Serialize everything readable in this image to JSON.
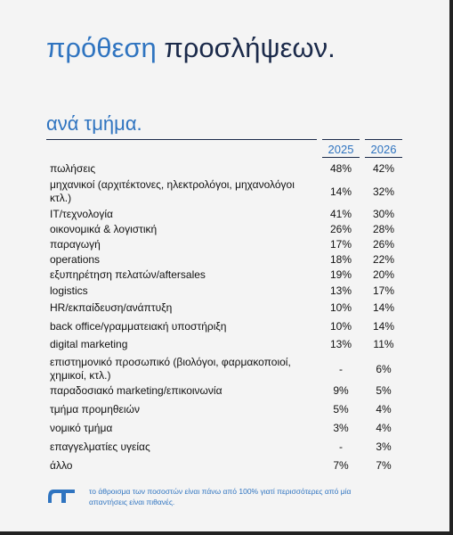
{
  "header": {
    "title_accent": "πρόθεση",
    "title_rest": "προσλήψεων.",
    "subtitle": "ανά τμήμα."
  },
  "table": {
    "columns": [
      "2025",
      "2026"
    ],
    "rows": [
      [
        "πωλήσεις",
        "48%",
        "42%"
      ],
      [
        "μηχανικοί (αρχιτέκτονες, ηλεκτρολόγοι, μηχανολόγοι κτλ.)",
        "14%",
        "32%"
      ],
      [
        "IT/τεχνολογία",
        "41%",
        "30%"
      ],
      [
        "οικονομικά & λογιστική",
        "26%",
        "28%"
      ],
      [
        "παραγωγή",
        "17%",
        "26%"
      ],
      [
        "operations",
        "18%",
        "22%"
      ],
      [
        "εξυπηρέτηση πελατών/aftersales",
        "19%",
        "20%"
      ],
      [
        "logistics",
        "13%",
        "17%"
      ],
      [
        "HR/εκπαίδευση/ανάπτυξη",
        "10%",
        "14%"
      ],
      [
        "back office/γραμματειακή υποστήριξη",
        "10%",
        "14%"
      ],
      [
        "digital marketing",
        "13%",
        "11%"
      ],
      [
        "επιστημονικό προσωπικό (βιολόγοι, φαρμακοποιοί, χημικοί, κτλ.)",
        "-",
        "6%"
      ],
      [
        "παραδοσιακό marketing/επικοινωνία",
        "9%",
        "5%"
      ],
      [
        "τμήμα προμηθειών",
        "5%",
        "4%"
      ],
      [
        "νομικό τμήμα",
        "3%",
        "4%"
      ],
      [
        "επαγγελματίες υγείας",
        "-",
        "3%"
      ],
      [
        "άλλο",
        "7%",
        "7%"
      ]
    ]
  },
  "footnote": "το άθροισμα των ποσοστών είναι πάνω από 100% γιατί περισσότερες από μία απαντήσεις είναι πιθανές."
}
